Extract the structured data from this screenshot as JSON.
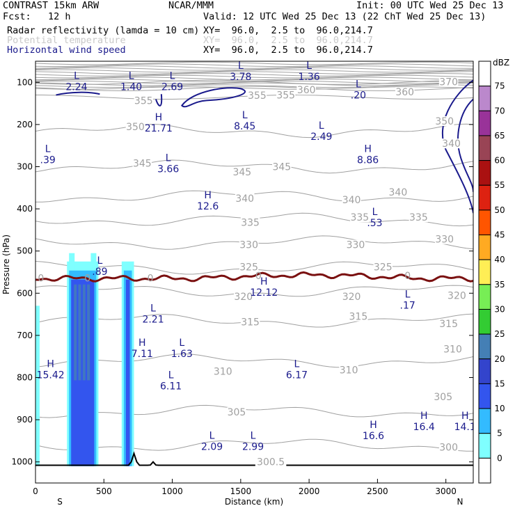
{
  "header": {
    "title_left": "CONTRAST 15km ARW",
    "title_center": "NCAR/MMM",
    "init": "Init: 00 UTC Wed 25 Dec 13",
    "fcst": "Fcst:   12 h",
    "valid": "Valid: 12 UTC Wed 25 Dec 13 (22 ChT Wed 25 Dec 13)",
    "field1_name": "Radar reflectivity (lamda = 10 cm)",
    "field1_xy": "XY=  96.0,  2.5 to  96.0,214.7",
    "field2_name": "Potential temperature",
    "field2_xy": "XY=  96.0,  2.5 to  96.0,214.7",
    "field3_name": "Horizontal wind speed",
    "field3_xy": "XY=  96.0,  2.5 to  96.0,214.7"
  },
  "colors": {
    "wind": "#1a1a8c",
    "theta": "#a0a0a0",
    "zero_line": "#7a1010",
    "terrain": "#000000"
  },
  "chart_data": {
    "type": "heatmap",
    "xlabel": "Distance (km)",
    "ylabel": "Pressure (hPa)",
    "xlim": [
      0,
      3200
    ],
    "ylim": [
      1050,
      50
    ],
    "x_ticks": [
      0,
      500,
      1000,
      1500,
      2000,
      2500,
      3000
    ],
    "y_ticks": [
      100,
      200,
      300,
      400,
      500,
      600,
      700,
      800,
      900,
      1000
    ],
    "x_end_labels": {
      "left": "S",
      "right": "N"
    },
    "colorbar": {
      "unit": "dBZ",
      "levels": [
        0,
        5,
        10,
        15,
        20,
        25,
        30,
        35,
        40,
        45,
        50,
        55,
        60,
        65,
        70,
        75
      ],
      "colors": [
        "#ffffff",
        "#7fffff",
        "#33bbff",
        "#3355ee",
        "#3344cc",
        "#447fb5",
        "#33cc33",
        "#77ee55",
        "#ffee55",
        "#ffaa22",
        "#ff5500",
        "#dd2211",
        "#aa1111",
        "#994455",
        "#993399",
        "#bb88cc"
      ]
    },
    "reflectivity_cells": [
      {
        "x_start": 0,
        "x_end": 30,
        "p_top": 610,
        "p_bottom": 1010,
        "max_dbz": 20
      },
      {
        "x_start": 230,
        "x_end": 460,
        "p_top": 505,
        "p_bottom": 1010,
        "max_dbz": 20
      },
      {
        "x_start": 630,
        "x_end": 720,
        "p_top": 505,
        "p_bottom": 1010,
        "max_dbz": 20
      }
    ],
    "theta_contours": [
      {
        "value": 300,
        "p": 960
      },
      {
        "value": 305,
        "p": 880
      },
      {
        "value": 310,
        "p": 760
      },
      {
        "value": 315,
        "p": 665
      },
      {
        "value": 320,
        "p": 595
      },
      {
        "value": 325,
        "p": 540
      },
      {
        "value": 330,
        "p": 480
      },
      {
        "value": 335,
        "p": 425
      },
      {
        "value": 340,
        "p": 370
      },
      {
        "value": 345,
        "p": 300
      },
      {
        "value": 350,
        "p": 215
      },
      {
        "value": 355,
        "p": 135
      },
      {
        "value": 360,
        "p": 115
      },
      {
        "value": 370,
        "p": 100
      }
    ],
    "theta_labels": [
      {
        "text": "300",
        "x": 3020,
        "p": 965
      },
      {
        "text": "300.5",
        "x": 1720,
        "p": 1000
      },
      {
        "text": "305",
        "x": 1470,
        "p": 882
      },
      {
        "text": "305",
        "x": 2980,
        "p": 845
      },
      {
        "text": "310",
        "x": 1370,
        "p": 785
      },
      {
        "text": "310",
        "x": 2290,
        "p": 782
      },
      {
        "text": "310",
        "x": 3050,
        "p": 732
      },
      {
        "text": "315",
        "x": 1570,
        "p": 668
      },
      {
        "text": "315",
        "x": 2360,
        "p": 655
      },
      {
        "text": "315",
        "x": 3020,
        "p": 672
      },
      {
        "text": "320",
        "x": 1520,
        "p": 608
      },
      {
        "text": "320",
        "x": 2310,
        "p": 608
      },
      {
        "text": "320",
        "x": 3080,
        "p": 605
      },
      {
        "text": "325",
        "x": 1560,
        "p": 538
      },
      {
        "text": "325",
        "x": 2540,
        "p": 538
      },
      {
        "text": "330",
        "x": 1560,
        "p": 485
      },
      {
        "text": "330",
        "x": 2340,
        "p": 485
      },
      {
        "text": "330",
        "x": 2990,
        "p": 472
      },
      {
        "text": "335",
        "x": 1570,
        "p": 432
      },
      {
        "text": "335",
        "x": 2370,
        "p": 420
      },
      {
        "text": "335",
        "x": 2800,
        "p": 420
      },
      {
        "text": "340",
        "x": 1530,
        "p": 375
      },
      {
        "text": "340",
        "x": 2310,
        "p": 378
      },
      {
        "text": "340",
        "x": 2650,
        "p": 360
      },
      {
        "text": "345",
        "x": 780,
        "p": 292
      },
      {
        "text": "345",
        "x": 1510,
        "p": 312
      },
      {
        "text": "345",
        "x": 1800,
        "p": 300
      },
      {
        "text": "350",
        "x": 730,
        "p": 205
      },
      {
        "text": "350",
        "x": 2990,
        "p": 192
      },
      {
        "text": "355",
        "x": 790,
        "p": 143
      },
      {
        "text": "355",
        "x": 1620,
        "p": 131
      },
      {
        "text": "355",
        "x": 1830,
        "p": 130
      },
      {
        "text": "360",
        "x": 1980,
        "p": 118
      },
      {
        "text": "360",
        "x": 2700,
        "p": 123
      },
      {
        "text": "370",
        "x": 3020,
        "p": 99
      },
      {
        "text": "340",
        "x": 3040,
        "p": 245
      }
    ],
    "wind_extrema": [
      {
        "type": "L",
        "value": "2.24",
        "x": 300,
        "p": 92
      },
      {
        "type": "L",
        "value": "1.40",
        "x": 700,
        "p": 92
      },
      {
        "type": "L",
        "value": "2.69",
        "x": 1000,
        "p": 92
      },
      {
        "type": "L",
        "value": "3.78",
        "x": 1500,
        "p": 68
      },
      {
        "type": "L",
        "value": "1.36",
        "x": 2000,
        "p": 68
      },
      {
        "type": "L",
        "value": ".20",
        "x": 2360,
        "p": 112
      },
      {
        "type": "H",
        "value": "21.71",
        "x": 900,
        "p": 190
      },
      {
        "type": "L",
        "value": "8.45",
        "x": 1530,
        "p": 185
      },
      {
        "type": "L",
        "value": "2.49",
        "x": 2090,
        "p": 210
      },
      {
        "type": "L",
        "value": ".39",
        "x": 90,
        "p": 265
      },
      {
        "type": "L",
        "value": "3.66",
        "x": 970,
        "p": 287
      },
      {
        "type": "H",
        "value": "8.86",
        "x": 2430,
        "p": 265
      },
      {
        "type": "H",
        "value": "12.6",
        "x": 1260,
        "p": 375
      },
      {
        "type": "L",
        "value": ".53",
        "x": 2480,
        "p": 415
      },
      {
        "type": "L",
        "value": ".89",
        "x": 470,
        "p": 530
      },
      {
        "type": "H",
        "value": "12.12",
        "x": 1670,
        "p": 580
      },
      {
        "type": "L",
        "value": ".17",
        "x": 2720,
        "p": 610
      },
      {
        "type": "L",
        "value": "2.21",
        "x": 860,
        "p": 643
      },
      {
        "type": "H",
        "value": "7.11",
        "x": 780,
        "p": 725
      },
      {
        "type": "L",
        "value": "1.63",
        "x": 1070,
        "p": 725
      },
      {
        "type": "H",
        "value": "15.42",
        "x": 110,
        "p": 775
      },
      {
        "type": "L",
        "value": "6.11",
        "x": 990,
        "p": 802
      },
      {
        "type": "L",
        "value": "6.17",
        "x": 1910,
        "p": 775
      },
      {
        "type": "H",
        "value": "16.6",
        "x": 2470,
        "p": 920
      },
      {
        "type": "H",
        "value": "16.4",
        "x": 2840,
        "p": 898
      },
      {
        "type": "H",
        "value": "14.1",
        "x": 3140,
        "p": 898
      },
      {
        "type": "L",
        "value": "2.09",
        "x": 1290,
        "p": 945
      },
      {
        "type": "L",
        "value": "2.99",
        "x": 1590,
        "p": 945
      }
    ],
    "zero_labels": [
      {
        "text": "0",
        "x": 40,
        "p": 566
      },
      {
        "text": "0",
        "x": 380,
        "p": 566
      },
      {
        "text": "0",
        "x": 840,
        "p": 566
      },
      {
        "text": "0",
        "x": 1630,
        "p": 560
      },
      {
        "text": "0",
        "x": 2720,
        "p": 560
      }
    ]
  }
}
